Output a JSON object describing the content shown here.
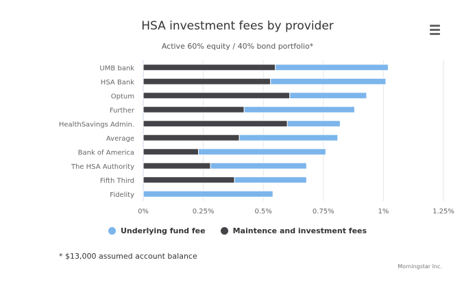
{
  "chart_data": {
    "type": "bar",
    "orientation": "horizontal",
    "stacked": true,
    "title": "HSA investment fees by provider",
    "subtitle": "Active 60% equity / 40% bond portfolio*",
    "categories": [
      "UMB bank",
      "HSA Bank",
      "Optum",
      "Further",
      "HealthSavings Admin.",
      "Average",
      "Bank of America",
      "The HSA Authority",
      "Fifth Third",
      "Fidelity"
    ],
    "series": [
      {
        "name": "Underlying fund fee",
        "color": "#7cb5ec",
        "values": [
          0.47,
          0.48,
          0.32,
          0.46,
          0.22,
          0.41,
          0.53,
          0.4,
          0.3,
          0.54
        ]
      },
      {
        "name": "Maintence and investment fees",
        "color": "#434348",
        "values": [
          0.55,
          0.53,
          0.61,
          0.42,
          0.6,
          0.4,
          0.23,
          0.28,
          0.38,
          0
        ]
      }
    ],
    "xlim": [
      0,
      1.25
    ],
    "x_ticks": [
      0,
      0.25,
      0.5,
      0.75,
      1,
      1.25
    ],
    "x_tick_labels": [
      "0%",
      "0.25%",
      "0.5%",
      "0.75%",
      "1%",
      "1.25%"
    ],
    "xlabel": "",
    "ylabel": "",
    "grid": "vertical",
    "legend_position": "bottom-center"
  },
  "footnote": "* $13,000 assumed account balance",
  "credits": "Morningstar Inc."
}
